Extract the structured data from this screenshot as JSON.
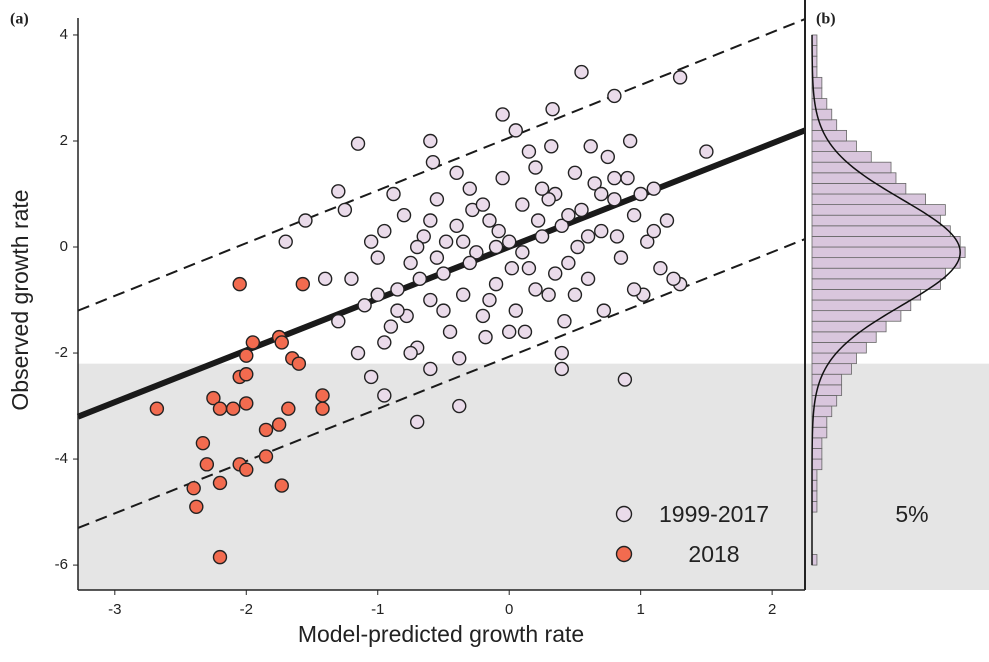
{
  "chart_data": [
    {
      "type": "scatter",
      "label": "(a)",
      "xlabel": "Model-predicted growth rate",
      "ylabel": "Observed growth rate",
      "xlim": [
        -3.28,
        2.25
      ],
      "ylim": [
        -6.47,
        4.32
      ],
      "xticks": [
        -3,
        -2,
        -1,
        0,
        1,
        2
      ],
      "yticks": [
        -6,
        -4,
        -2,
        0,
        2,
        4
      ],
      "shade_below": -2.2,
      "shade_color": "#e5e5e5",
      "legend": "lower right",
      "lines": [
        {
          "style": "solid",
          "color": "#1a1a1a",
          "x": [
            -3.28,
            2.25
          ],
          "y": [
            -3.2,
            2.2
          ]
        },
        {
          "style": "dashed",
          "color": "#1a1a1a",
          "x": [
            -3.28,
            2.25
          ],
          "y": [
            -1.2,
            4.3
          ]
        },
        {
          "style": "dashed",
          "color": "#1a1a1a",
          "x": [
            -3.28,
            2.25
          ],
          "y": [
            -5.3,
            0.15
          ]
        }
      ],
      "series": [
        {
          "name": "1999-2017",
          "color": "#eadbea",
          "x": [
            0.55,
            1.3,
            0.8,
            0.33,
            -0.05,
            -1.15,
            1.5,
            -1.3,
            -1.7,
            -1.55,
            -0.7,
            -0.38,
            0.88,
            -0.95,
            -1.05,
            1.3,
            -1.4,
            0.4,
            -0.6,
            -1.2,
            -1.1,
            -1.0,
            -0.95,
            -0.9,
            -0.85,
            -0.8,
            -0.75,
            -0.7,
            -0.65,
            -0.6,
            -0.55,
            -0.5,
            -0.45,
            -0.4,
            -0.35,
            -0.3,
            -0.25,
            -0.2,
            -0.15,
            -0.1,
            -0.05,
            0.0,
            0.05,
            0.1,
            0.15,
            0.2,
            0.25,
            0.3,
            0.35,
            0.4,
            0.45,
            0.5,
            0.55,
            0.6,
            0.65,
            0.7,
            0.75,
            0.8,
            0.85,
            0.9,
            0.95,
            1.0,
            1.05,
            1.1,
            1.15,
            1.2,
            -1.25,
            -1.15,
            -1.05,
            -0.95,
            -0.88,
            -0.78,
            -0.68,
            -0.58,
            -0.48,
            -0.38,
            -0.28,
            -0.18,
            -0.08,
            0.02,
            0.12,
            0.22,
            0.32,
            0.42,
            0.52,
            0.62,
            0.72,
            0.82,
            0.92,
            1.02,
            0.3,
            -0.3,
            0.1,
            -0.1,
            0.45,
            -0.5,
            0.6,
            -0.7,
            0.2,
            -0.2,
            0.0,
            0.35,
            -0.4,
            0.8,
            -0.85,
            0.95,
            -1.0,
            0.15,
            -0.6,
            0.5,
            -0.15,
            0.25,
            -0.35,
            0.7,
            -0.55,
            1.1,
            -0.75,
            0.4,
            1.25,
            -1.3,
            0.05,
            -0.6
          ],
          "y": [
            3.3,
            3.2,
            2.85,
            2.6,
            2.5,
            1.95,
            1.8,
            1.05,
            0.1,
            0.5,
            -3.3,
            -3.0,
            -2.5,
            -2.8,
            -2.45,
            -0.7,
            -0.6,
            -2.3,
            -2.3,
            -0.6,
            -1.1,
            -0.2,
            0.3,
            -1.5,
            -0.8,
            0.6,
            -0.3,
            -1.9,
            0.2,
            -1.0,
            0.9,
            -0.5,
            -1.6,
            0.4,
            -0.9,
            1.1,
            -0.1,
            -1.3,
            0.5,
            -0.7,
            1.3,
            0.1,
            -1.2,
            0.8,
            -0.4,
            1.5,
            0.2,
            -0.9,
            1.0,
            0.4,
            -0.3,
            1.4,
            0.7,
            -0.6,
            1.2,
            0.3,
            1.7,
            0.9,
            -0.2,
            1.3,
            0.6,
            1.0,
            0.1,
            1.1,
            -0.4,
            0.5,
            0.7,
            -2.0,
            0.1,
            -1.8,
            1.0,
            -1.3,
            -0.6,
            1.6,
            0.1,
            -2.1,
            0.7,
            -1.7,
            0.3,
            -0.4,
            -1.6,
            0.5,
            1.9,
            -1.4,
            0.0,
            1.9,
            -1.2,
            0.2,
            2.0,
            -0.9,
            0.9,
            -0.3,
            -0.1,
            0.0,
            0.6,
            -1.2,
            0.2,
            0.0,
            -0.8,
            0.8,
            -1.6,
            -0.5,
            1.4,
            1.3,
            -1.2,
            -0.8,
            -0.9,
            1.8,
            0.5,
            -0.9,
            -1.0,
            1.1,
            0.1,
            1.0,
            -0.2,
            0.3,
            -2.0,
            -2.0,
            -0.6,
            -1.4,
            2.2,
            2.0
          ]
        },
        {
          "name": "2018",
          "color": "#f26b4f",
          "x": [
            -2.05,
            -1.57,
            -1.75,
            -1.73,
            -1.95,
            -2.0,
            -1.65,
            -1.6,
            -2.05,
            -2.0,
            -2.25,
            -2.2,
            -2.1,
            -2.0,
            -2.68,
            -1.85,
            -1.75,
            -1.68,
            -1.42,
            -1.42,
            -2.33,
            -2.3,
            -2.05,
            -2.0,
            -1.85,
            -2.2,
            -1.73,
            -2.4,
            -2.38,
            -2.2
          ],
          "y": [
            -0.7,
            -0.7,
            -1.7,
            -1.8,
            -1.8,
            -2.05,
            -2.1,
            -2.2,
            -2.45,
            -2.4,
            -2.85,
            -3.05,
            -3.05,
            -2.95,
            -3.05,
            -3.45,
            -3.35,
            -3.05,
            -2.8,
            -3.05,
            -3.7,
            -4.1,
            -4.1,
            -4.2,
            -3.95,
            -4.45,
            -4.5,
            -4.55,
            -4.9,
            -5.85
          ]
        }
      ]
    },
    {
      "type": "histogram",
      "label": "(b)",
      "annotation": "5%",
      "orientation": "horizontal",
      "color": "#d9c6dd",
      "ylim": [
        -6.47,
        4.32
      ],
      "xlim": [
        0,
        33
      ],
      "bins": [
        -6,
        -5.8,
        -5.6,
        -5.4,
        -5.2,
        -5,
        -4.8,
        -4.6,
        -4.4,
        -4.2,
        -4,
        -3.8,
        -3.6,
        -3.4,
        -3.2,
        -3,
        -2.8,
        -2.6,
        -2.4,
        -2.2,
        -2,
        -1.8,
        -1.6,
        -1.4,
        -1.2,
        -1,
        -0.8,
        -0.6,
        -0.4,
        -0.2,
        0,
        0.2,
        0.4,
        0.6,
        0.8,
        1,
        1.2,
        1.4,
        1.6,
        1.8,
        2,
        2.2,
        2.4,
        2.6,
        2.8,
        3,
        3.2,
        3.4,
        3.6,
        3.8,
        4
      ],
      "counts": [
        1,
        0,
        0,
        0,
        0,
        1,
        1,
        1,
        1,
        2,
        2,
        2,
        3,
        3,
        4,
        5,
        6,
        6,
        8,
        9,
        11,
        13,
        15,
        18,
        20,
        22,
        26,
        27,
        30,
        31,
        30,
        28,
        26,
        27,
        23,
        19,
        17,
        16,
        12,
        9,
        7,
        5,
        4,
        3,
        2,
        2,
        1,
        1,
        1,
        1
      ],
      "density": {
        "mean": -0.1,
        "sd": 1.0,
        "peak": 30
      }
    }
  ]
}
